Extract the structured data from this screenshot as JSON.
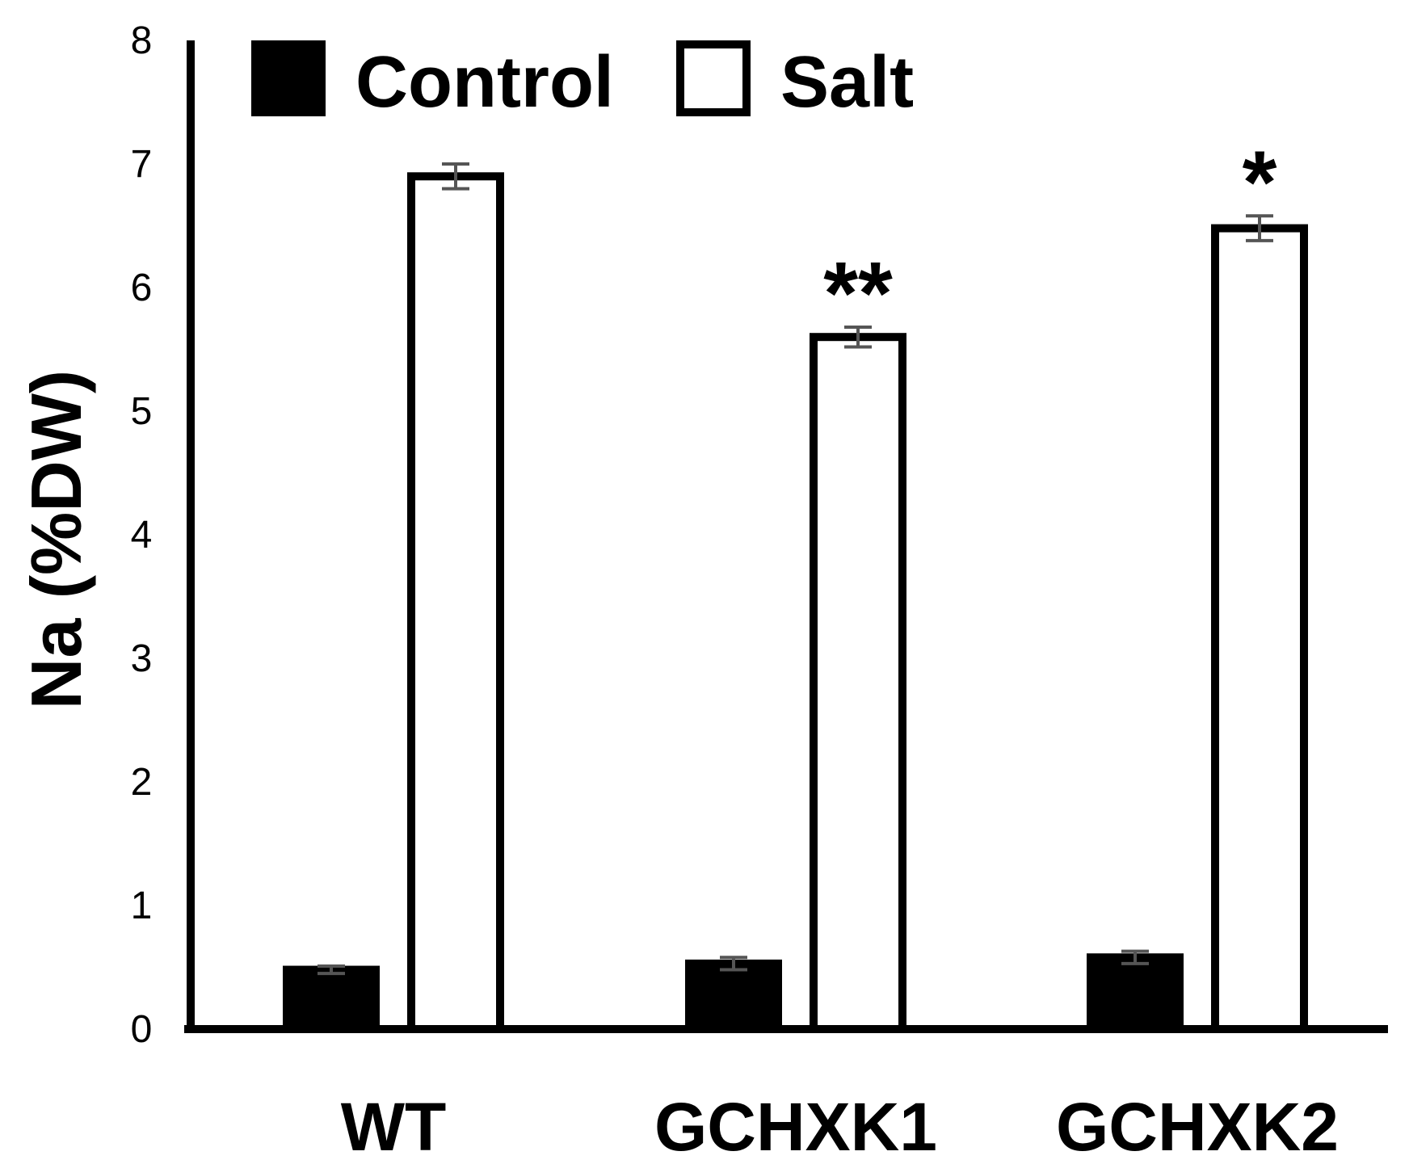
{
  "chart_data": {
    "type": "bar",
    "title": "",
    "xlabel": "",
    "ylabel": "Na (%DW)",
    "ylim": [
      0,
      8
    ],
    "yticks": [
      "0",
      "1",
      "2",
      "3",
      "4",
      "5",
      "6",
      "7",
      "8"
    ],
    "categories": [
      "WT",
      "GCHXK1",
      "GCHXK2"
    ],
    "series": [
      {
        "name": "Control",
        "fill": "#000000",
        "values": [
          0.48,
          0.53,
          0.58
        ],
        "errors": [
          0.03,
          0.05,
          0.05
        ]
      },
      {
        "name": "Salt",
        "fill": "#ffffff",
        "values": [
          6.9,
          5.6,
          6.48
        ],
        "errors": [
          0.1,
          0.08,
          0.1
        ]
      }
    ],
    "annotations": [
      {
        "category": "GCHXK1",
        "series": "Salt",
        "text": "**"
      },
      {
        "category": "GCHXK2",
        "series": "Salt",
        "text": "*"
      }
    ],
    "grid": false,
    "legend_position": "top-left"
  }
}
